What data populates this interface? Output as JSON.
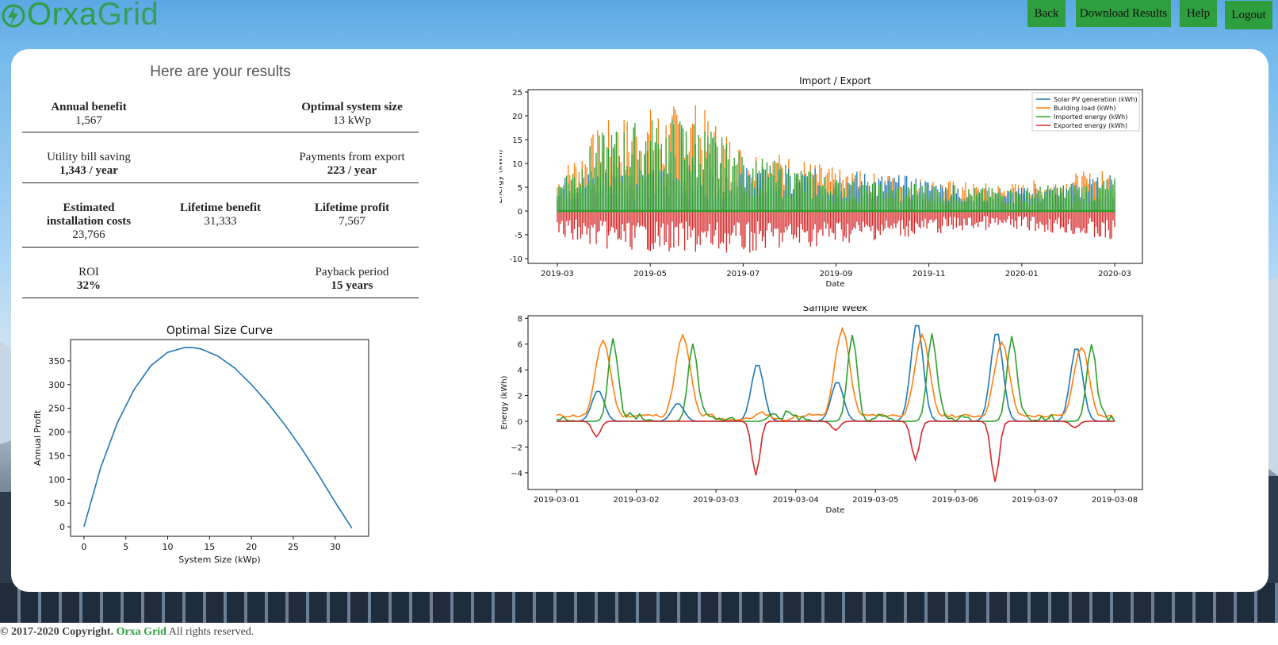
{
  "app": {
    "logo_part1": "Orxa",
    "logo_part2": "Grid",
    "brand_color": "#2f9e44"
  },
  "nav": {
    "back": "Back",
    "download": "Download Results",
    "help": "Help",
    "logout": "Logout"
  },
  "results": {
    "title": "Here are your results",
    "annual_benefit": {
      "label": "Annual benefit",
      "value": "1,567"
    },
    "optimal_size": {
      "label": "Optimal system size",
      "value": "13 kWp"
    },
    "bill_saving": {
      "label": "Utility bill saving",
      "value": "1,343 / year"
    },
    "export_payments": {
      "label": "Payments from export",
      "value": "223 / year"
    },
    "install_costs": {
      "label1": "Estimated",
      "label2": "installation costs",
      "value": "23,766"
    },
    "lifetime_benefit": {
      "label": "Lifetime benefit",
      "value": "31,333"
    },
    "lifetime_profit": {
      "label": "Lifetime profit",
      "value": "7,567"
    },
    "roi": {
      "label": "ROI",
      "value": "32%"
    },
    "payback": {
      "label": "Payback period",
      "value": "15 years"
    }
  },
  "chart_data": [
    {
      "type": "line",
      "title": "Optimal Size Curve",
      "xlabel": "System Size (kWp)",
      "ylabel": "Annual Profit",
      "xlim": [
        -1.6,
        34
      ],
      "ylim": [
        -20,
        395
      ],
      "xticks": [
        0,
        5,
        10,
        15,
        20,
        25,
        30
      ],
      "yticks": [
        0,
        50,
        100,
        150,
        200,
        250,
        300,
        350
      ],
      "grid": false,
      "color": "#1f77b4",
      "series": [
        {
          "x": [
            0,
            2,
            4,
            6,
            8,
            10,
            12,
            13,
            14,
            16,
            18,
            20,
            22,
            24,
            26,
            28,
            30,
            32
          ],
          "values": [
            0,
            125,
            220,
            290,
            340,
            368,
            378,
            378,
            375,
            360,
            335,
            300,
            260,
            215,
            165,
            110,
            52,
            -3
          ]
        }
      ]
    },
    {
      "type": "line",
      "title": "Import / Export",
      "xlabel": "Date",
      "ylabel": "Energy (kWh)",
      "ylim": [
        -11,
        25.5
      ],
      "xticks": [
        "2019-03",
        "2019-05",
        "2019-07",
        "2019-09",
        "2019-11",
        "2020-01",
        "2020-03"
      ],
      "yticks": [
        -10,
        -5,
        0,
        5,
        10,
        15,
        20,
        25
      ],
      "legend_position": "top-right",
      "series": [
        {
          "name": "Solar PV generation (kWh)",
          "color": "#1f77b4"
        },
        {
          "name": "Building load (kWh)",
          "color": "#ff7f0e"
        },
        {
          "name": "Imported energy (kWh)",
          "color": "#2ca02c"
        },
        {
          "name": "Exported energy (kWh)",
          "color": "#d62728"
        }
      ],
      "envelopes": {
        "months": [
          "2019-03",
          "2019-04",
          "2019-05",
          "2019-06",
          "2019-07",
          "2019-08",
          "2019-09",
          "2019-10",
          "2019-11",
          "2019-12",
          "2020-01",
          "2020-02",
          "2020-03"
        ],
        "load_max": [
          8,
          19,
          22,
          23,
          14,
          12,
          9,
          8,
          7,
          6,
          6,
          8,
          9
        ],
        "import_max": [
          7,
          17,
          20,
          20,
          12,
          10,
          7,
          6,
          6,
          5,
          5,
          6,
          7
        ],
        "pv_max": [
          7,
          9,
          9,
          10,
          10,
          9,
          9,
          8,
          7,
          5,
          5,
          6,
          8
        ],
        "export_min": [
          -6,
          -8,
          -8.5,
          -9,
          -9,
          -8,
          -7,
          -6,
          -5,
          -4,
          -4,
          -5,
          -7
        ]
      }
    },
    {
      "type": "line",
      "title": "Sample Week",
      "xlabel": "Date",
      "ylabel": "Energy (kWh)",
      "ylim": [
        -5.3,
        8.2
      ],
      "xticks": [
        "2019-03-01",
        "2019-03-02",
        "2019-03-03",
        "2019-03-04",
        "2019-03-05",
        "2019-03-06",
        "2019-03-07",
        "2019-03-08"
      ],
      "yticks": [
        -4,
        -2,
        0,
        2,
        4,
        6,
        8
      ],
      "x_hours": [
        0,
        168
      ],
      "series": [
        {
          "name": "Solar PV generation",
          "color": "#1f77b4",
          "peaks_by_day": [
            2.4,
            1.4,
            4.5,
            3.1,
            7.7,
            7.0,
            5.8
          ]
        },
        {
          "name": "Building load",
          "color": "#ff7f0e",
          "peaks_by_day": [
            6.2,
            6.5,
            0.5,
            7.0,
            6.5,
            6.0,
            5.7
          ]
        },
        {
          "name": "Imported energy",
          "color": "#2ca02c",
          "peaks_by_day": [
            6.4,
            5.9,
            0.5,
            6.7,
            6.7,
            6.5,
            5.9
          ]
        },
        {
          "name": "Exported energy",
          "color": "#d62728",
          "mins_by_day": [
            -1.2,
            0,
            -4.2,
            -0.7,
            -3.0,
            -4.7,
            -0.5
          ]
        }
      ]
    }
  ],
  "footer": {
    "copyright": "© 2017-2020 Copyright.",
    "brand": "Orxa Grid",
    "rights": "All rights reserved."
  }
}
